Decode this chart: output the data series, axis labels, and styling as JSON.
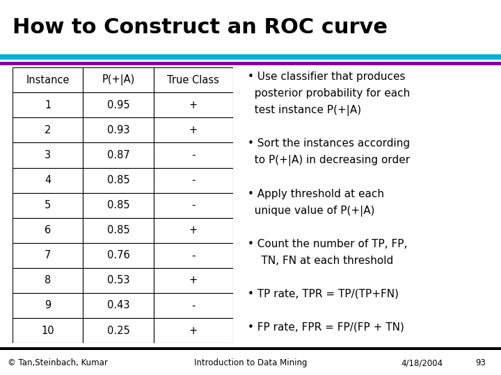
{
  "title": "How to Construct an ROC curve",
  "title_fontsize": 22,
  "title_fontweight": "bold",
  "bg_color": "#ffffff",
  "header_line1_color": "#00b0d8",
  "header_line2_color": "#8000a0",
  "table_headers": [
    "Instance",
    "P(+|A)",
    "True Class"
  ],
  "table_data": [
    [
      "1",
      "0.95",
      "+"
    ],
    [
      "2",
      "0.93",
      "+"
    ],
    [
      "3",
      "0.87",
      "-"
    ],
    [
      "4",
      "0.85",
      "-"
    ],
    [
      "5",
      "0.85",
      "-"
    ],
    [
      "6",
      "0.85",
      "+"
    ],
    [
      "7",
      "0.76",
      "-"
    ],
    [
      "8",
      "0.53",
      "+"
    ],
    [
      "9",
      "0.43",
      "-"
    ],
    [
      "10",
      "0.25",
      "+"
    ]
  ],
  "bullet_lines": [
    "• Use classifier that produces",
    "  posterior probability for each",
    "  test instance P(+|A)",
    "",
    "• Sort the instances according",
    "  to P(+|A) in decreasing order",
    "",
    "• Apply threshold at each",
    "  unique value of P(+|A)",
    "",
    "• Count the number of TP, FP,",
    "    TN, FN at each threshold",
    "",
    "• TP rate, TPR = TP/(TP+FN)",
    "",
    "• FP rate, FPR = FP/(FP + TN)"
  ],
  "bullet_fontsize": 11,
  "footer_left": "© Tan,Steinbach, Kumar",
  "footer_center": "Introduction to Data Mining",
  "footer_right": "4/18/2004",
  "footer_page": "93",
  "footer_fontsize": 8.5,
  "table_font_size": 10.5,
  "table_header_font_size": 10.5,
  "footer_bg": "#d4d4d4"
}
